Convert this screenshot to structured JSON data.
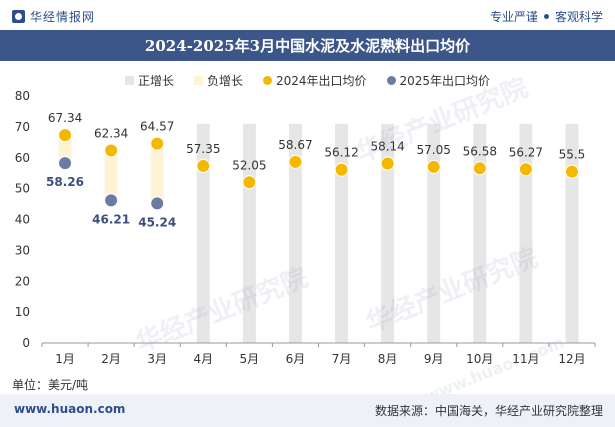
{
  "header": {
    "logo_text": "华经情报网",
    "tag1": "专业严谨",
    "tag2": "客观科学"
  },
  "title": "2024-2025年3月中国水泥及水泥熟料出口均价",
  "watermark": "华经产业研究院",
  "watermark_url": "www.huaon.com",
  "colors": {
    "title_bg": "#3d5689",
    "bar_positive": "#e6e6e6",
    "bar_negative": "#fff3d6",
    "dot_2024": "#f5b800",
    "dot_2025": "#6a7ba6",
    "footer_bg": "#eef2f8"
  },
  "footer": {
    "unit": "单位：美元/吨",
    "url": "www.huaon.com",
    "source": "数据来源：中国海关，华经产业研究院整理"
  },
  "chart_data": {
    "type": "bar",
    "categories": [
      "1月",
      "2月",
      "3月",
      "4月",
      "5月",
      "6月",
      "7月",
      "8月",
      "9月",
      "10月",
      "11月",
      "12月"
    ],
    "ylim": [
      0,
      80
    ],
    "yticks": [
      0,
      10,
      20,
      30,
      40,
      50,
      60,
      70,
      80
    ],
    "legend_position": "top",
    "series": [
      {
        "name": "正增长",
        "type": "bar",
        "values": [
          null,
          null,
          null,
          71,
          71,
          71,
          71,
          71,
          71,
          71,
          71,
          71
        ]
      },
      {
        "name": "负增长",
        "type": "bar",
        "range_values": [
          [
            58.26,
            67.34
          ],
          [
            46.21,
            62.34
          ],
          [
            45.24,
            64.57
          ],
          null,
          null,
          null,
          null,
          null,
          null,
          null,
          null,
          null
        ]
      },
      {
        "name": "2024年出口均价",
        "type": "dot",
        "values": [
          67.34,
          62.34,
          64.57,
          57.35,
          52.05,
          58.67,
          56.12,
          58.14,
          57.05,
          56.58,
          56.27,
          55.5
        ]
      },
      {
        "name": "2025年出口均价",
        "type": "dot",
        "values": [
          58.26,
          46.21,
          45.24,
          null,
          null,
          null,
          null,
          null,
          null,
          null,
          null,
          null
        ]
      }
    ]
  }
}
